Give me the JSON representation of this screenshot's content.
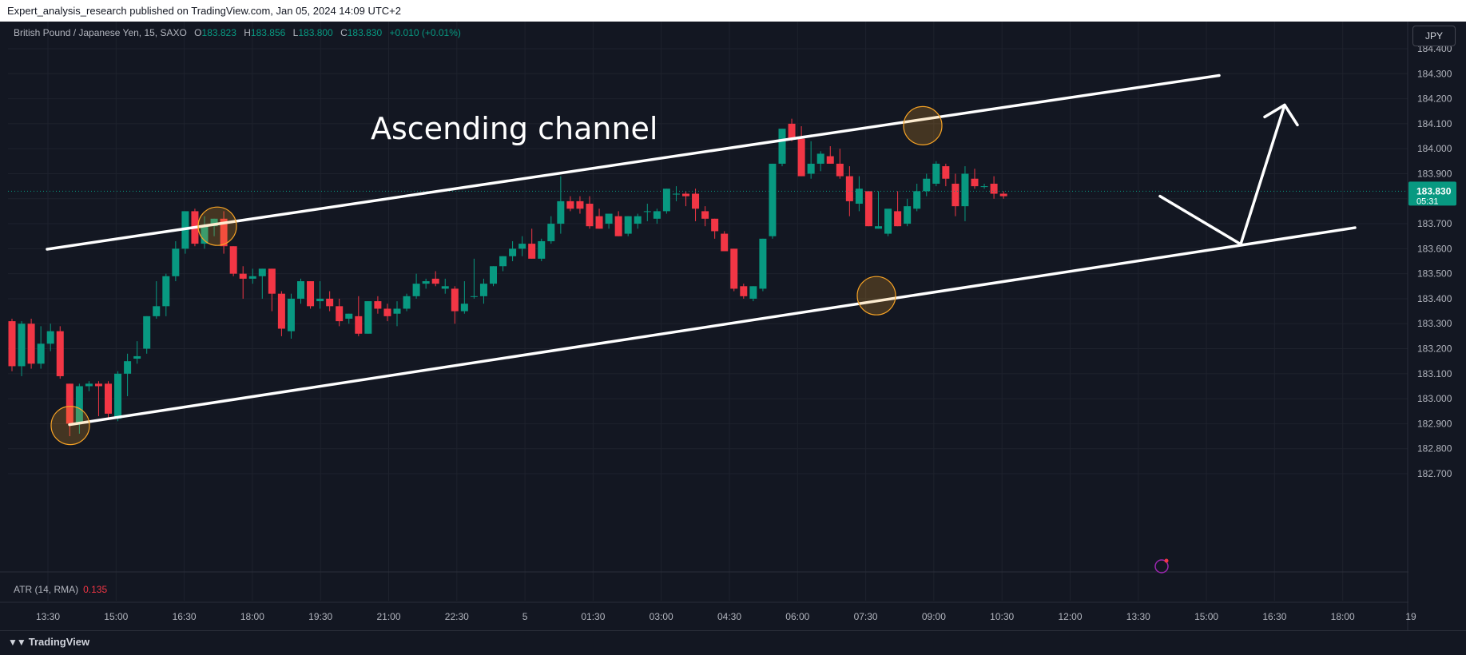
{
  "header": {
    "publish_line": "Expert_analysis_research published on TradingView.com, Jan 05, 2024 14:09 UTC+2"
  },
  "legend": {
    "symbol": "British Pound / Japanese Yen, 15, SAXO",
    "o_label": "O",
    "o_value": "183.823",
    "h_label": "H",
    "h_value": "183.856",
    "l_label": "L",
    "l_value": "183.800",
    "c_label": "C",
    "c_value": "183.830",
    "change": "+0.010 (+0.01%)"
  },
  "currency_button": "JPY",
  "indicator": {
    "name": "ATR (14, RMA)",
    "value": "0.135"
  },
  "brand": "TradingView",
  "colors": {
    "background": "#131722",
    "up": "#089981",
    "down": "#f23645",
    "drawing": "#ffffff",
    "highlight": "#f7a325"
  },
  "chart_data": {
    "type": "candlestick",
    "title": "",
    "annotation": "Ascending channel",
    "price_axis_ticks": [
      "184.400",
      "184.300",
      "184.200",
      "184.100",
      "184.000",
      "183.900",
      "183.800",
      "183.700",
      "183.600",
      "183.500",
      "183.400",
      "183.300",
      "183.200",
      "183.100",
      "183.000",
      "182.900",
      "182.800",
      "182.700"
    ],
    "ylim": [
      182.62,
      184.47
    ],
    "time_axis_ticks": [
      "13:30",
      "15:00",
      "16:30",
      "18:00",
      "19:30",
      "21:00",
      "22:30",
      "5",
      "01:30",
      "03:00",
      "04:30",
      "06:00",
      "07:30",
      "09:00",
      "10:30",
      "12:00",
      "13:30",
      "15:00",
      "16:30",
      "18:00",
      "19"
    ],
    "last_price": "183.830",
    "countdown": "05:31",
    "candles_ohlc": [
      [
        183.31,
        183.32,
        183.11,
        183.13
      ],
      [
        183.13,
        183.31,
        183.09,
        183.3
      ],
      [
        183.3,
        183.32,
        183.12,
        183.14
      ],
      [
        183.14,
        183.29,
        183.12,
        183.22
      ],
      [
        183.22,
        183.3,
        183.19,
        183.27
      ],
      [
        183.27,
        183.29,
        183.08,
        183.09
      ],
      [
        183.06,
        183.06,
        182.85,
        182.9
      ],
      [
        182.9,
        183.06,
        182.86,
        183.05
      ],
      [
        183.05,
        183.07,
        183.03,
        183.06
      ],
      [
        183.06,
        183.07,
        182.93,
        183.05
      ],
      [
        183.06,
        183.07,
        182.92,
        182.94
      ],
      [
        182.92,
        183.11,
        182.91,
        183.1
      ],
      [
        183.1,
        183.18,
        183.01,
        183.15
      ],
      [
        183.16,
        183.23,
        183.14,
        183.17
      ],
      [
        183.2,
        183.33,
        183.18,
        183.33
      ],
      [
        183.33,
        183.47,
        183.32,
        183.37
      ],
      [
        183.37,
        183.5,
        183.33,
        183.49
      ],
      [
        183.49,
        183.63,
        183.47,
        183.6
      ],
      [
        183.6,
        183.75,
        183.58,
        183.75
      ],
      [
        183.75,
        183.76,
        183.61,
        183.62
      ],
      [
        183.62,
        183.73,
        183.6,
        183.69
      ],
      [
        183.69,
        183.72,
        183.65,
        183.72
      ],
      [
        183.72,
        183.75,
        183.58,
        183.61
      ],
      [
        183.61,
        183.61,
        183.49,
        183.5
      ],
      [
        183.5,
        183.53,
        183.4,
        183.48
      ],
      [
        183.48,
        183.52,
        183.46,
        183.49
      ],
      [
        183.49,
        183.52,
        183.4,
        183.52
      ],
      [
        183.52,
        183.52,
        183.35,
        183.42
      ],
      [
        183.42,
        183.43,
        183.25,
        183.28
      ],
      [
        183.27,
        183.42,
        183.24,
        183.4
      ],
      [
        183.4,
        183.48,
        183.38,
        183.47
      ],
      [
        183.47,
        183.47,
        183.36,
        183.37
      ],
      [
        183.39,
        183.47,
        183.36,
        183.4
      ],
      [
        183.4,
        183.43,
        183.35,
        183.37
      ],
      [
        183.37,
        183.4,
        183.29,
        183.31
      ],
      [
        183.32,
        183.34,
        183.3,
        183.34
      ],
      [
        183.33,
        183.41,
        183.25,
        183.26
      ],
      [
        183.26,
        183.39,
        183.26,
        183.39
      ],
      [
        183.39,
        183.41,
        183.34,
        183.36
      ],
      [
        183.36,
        183.38,
        183.31,
        183.33
      ],
      [
        183.34,
        183.39,
        183.29,
        183.36
      ],
      [
        183.36,
        183.42,
        183.35,
        183.41
      ],
      [
        183.41,
        183.5,
        183.4,
        183.46
      ],
      [
        183.46,
        183.48,
        183.44,
        183.47
      ],
      [
        183.48,
        183.51,
        183.45,
        183.46
      ],
      [
        183.44,
        183.48,
        183.42,
        183.45
      ],
      [
        183.44,
        183.45,
        183.3,
        183.35
      ],
      [
        183.35,
        183.47,
        183.34,
        183.38
      ],
      [
        183.41,
        183.56,
        183.4,
        183.41
      ],
      [
        183.41,
        183.48,
        183.38,
        183.46
      ],
      [
        183.46,
        183.53,
        183.45,
        183.53
      ],
      [
        183.53,
        183.57,
        183.51,
        183.57
      ],
      [
        183.57,
        183.63,
        183.55,
        183.6
      ],
      [
        183.6,
        183.65,
        183.57,
        183.62
      ],
      [
        183.62,
        183.68,
        183.56,
        183.56
      ],
      [
        183.56,
        183.64,
        183.55,
        183.63
      ],
      [
        183.63,
        183.73,
        183.62,
        183.7
      ],
      [
        183.7,
        183.89,
        183.66,
        183.79
      ],
      [
        183.79,
        183.81,
        183.75,
        183.76
      ],
      [
        183.79,
        183.81,
        183.74,
        183.76
      ],
      [
        183.78,
        183.81,
        183.68,
        183.69
      ],
      [
        183.73,
        183.76,
        183.68,
        183.68
      ],
      [
        183.7,
        183.74,
        183.68,
        183.74
      ],
      [
        183.73,
        183.75,
        183.65,
        183.65
      ],
      [
        183.66,
        183.73,
        183.65,
        183.73
      ],
      [
        183.7,
        183.74,
        183.68,
        183.73
      ],
      [
        183.75,
        183.78,
        183.71,
        183.75
      ],
      [
        183.72,
        183.76,
        183.7,
        183.75
      ],
      [
        183.75,
        183.84,
        183.74,
        183.84
      ],
      [
        183.82,
        183.85,
        183.79,
        183.82
      ],
      [
        183.82,
        183.83,
        183.77,
        183.81
      ],
      [
        183.82,
        183.84,
        183.71,
        183.76
      ],
      [
        183.75,
        183.77,
        183.69,
        183.72
      ],
      [
        183.72,
        183.72,
        183.64,
        183.67
      ],
      [
        183.66,
        183.67,
        183.59,
        183.59
      ],
      [
        183.6,
        183.6,
        183.43,
        183.44
      ],
      [
        183.45,
        183.46,
        183.4,
        183.41
      ],
      [
        183.4,
        183.45,
        183.39,
        183.45
      ],
      [
        183.44,
        183.64,
        183.43,
        183.64
      ],
      [
        183.65,
        183.94,
        183.64,
        183.94
      ],
      [
        183.94,
        184.08,
        183.93,
        184.08
      ],
      [
        184.1,
        184.12,
        184.03,
        184.04
      ],
      [
        184.04,
        184.09,
        183.89,
        183.89
      ],
      [
        183.9,
        184.03,
        183.88,
        183.94
      ],
      [
        183.94,
        183.99,
        183.91,
        183.98
      ],
      [
        183.97,
        184.01,
        183.94,
        183.94
      ],
      [
        183.94,
        184.0,
        183.88,
        183.89
      ],
      [
        183.89,
        183.93,
        183.73,
        183.79
      ],
      [
        183.78,
        183.89,
        183.75,
        183.84
      ],
      [
        183.83,
        183.83,
        183.69,
        183.69
      ],
      [
        183.68,
        183.83,
        183.68,
        183.69
      ],
      [
        183.66,
        183.75,
        183.65,
        183.76
      ],
      [
        183.75,
        183.83,
        183.69,
        183.69
      ],
      [
        183.7,
        183.8,
        183.69,
        183.77
      ],
      [
        183.76,
        183.86,
        183.75,
        183.83
      ],
      [
        183.83,
        183.9,
        183.81,
        183.88
      ],
      [
        183.86,
        183.95,
        183.85,
        183.94
      ],
      [
        183.93,
        183.94,
        183.85,
        183.88
      ],
      [
        183.86,
        183.9,
        183.73,
        183.77
      ],
      [
        183.77,
        183.93,
        183.71,
        183.9
      ],
      [
        183.88,
        183.92,
        183.84,
        183.85
      ],
      [
        183.85,
        183.86,
        183.84,
        183.85
      ],
      [
        183.86,
        183.89,
        183.8,
        183.82
      ],
      [
        183.82,
        183.83,
        183.8,
        183.81
      ]
    ],
    "ascending_channel": {
      "upper": [
        [
          "12:00 prev",
          183.6
        ],
        [
          "14:09",
          184.29
        ]
      ],
      "lower": [
        [
          "14:00",
          182.9
        ],
        [
          "18:00",
          183.7
        ]
      ]
    },
    "touch_points": [
      182.89,
      183.69,
      184.1,
      183.41
    ],
    "projection": [
      "183.81",
      "183.61",
      "184.18"
    ]
  }
}
